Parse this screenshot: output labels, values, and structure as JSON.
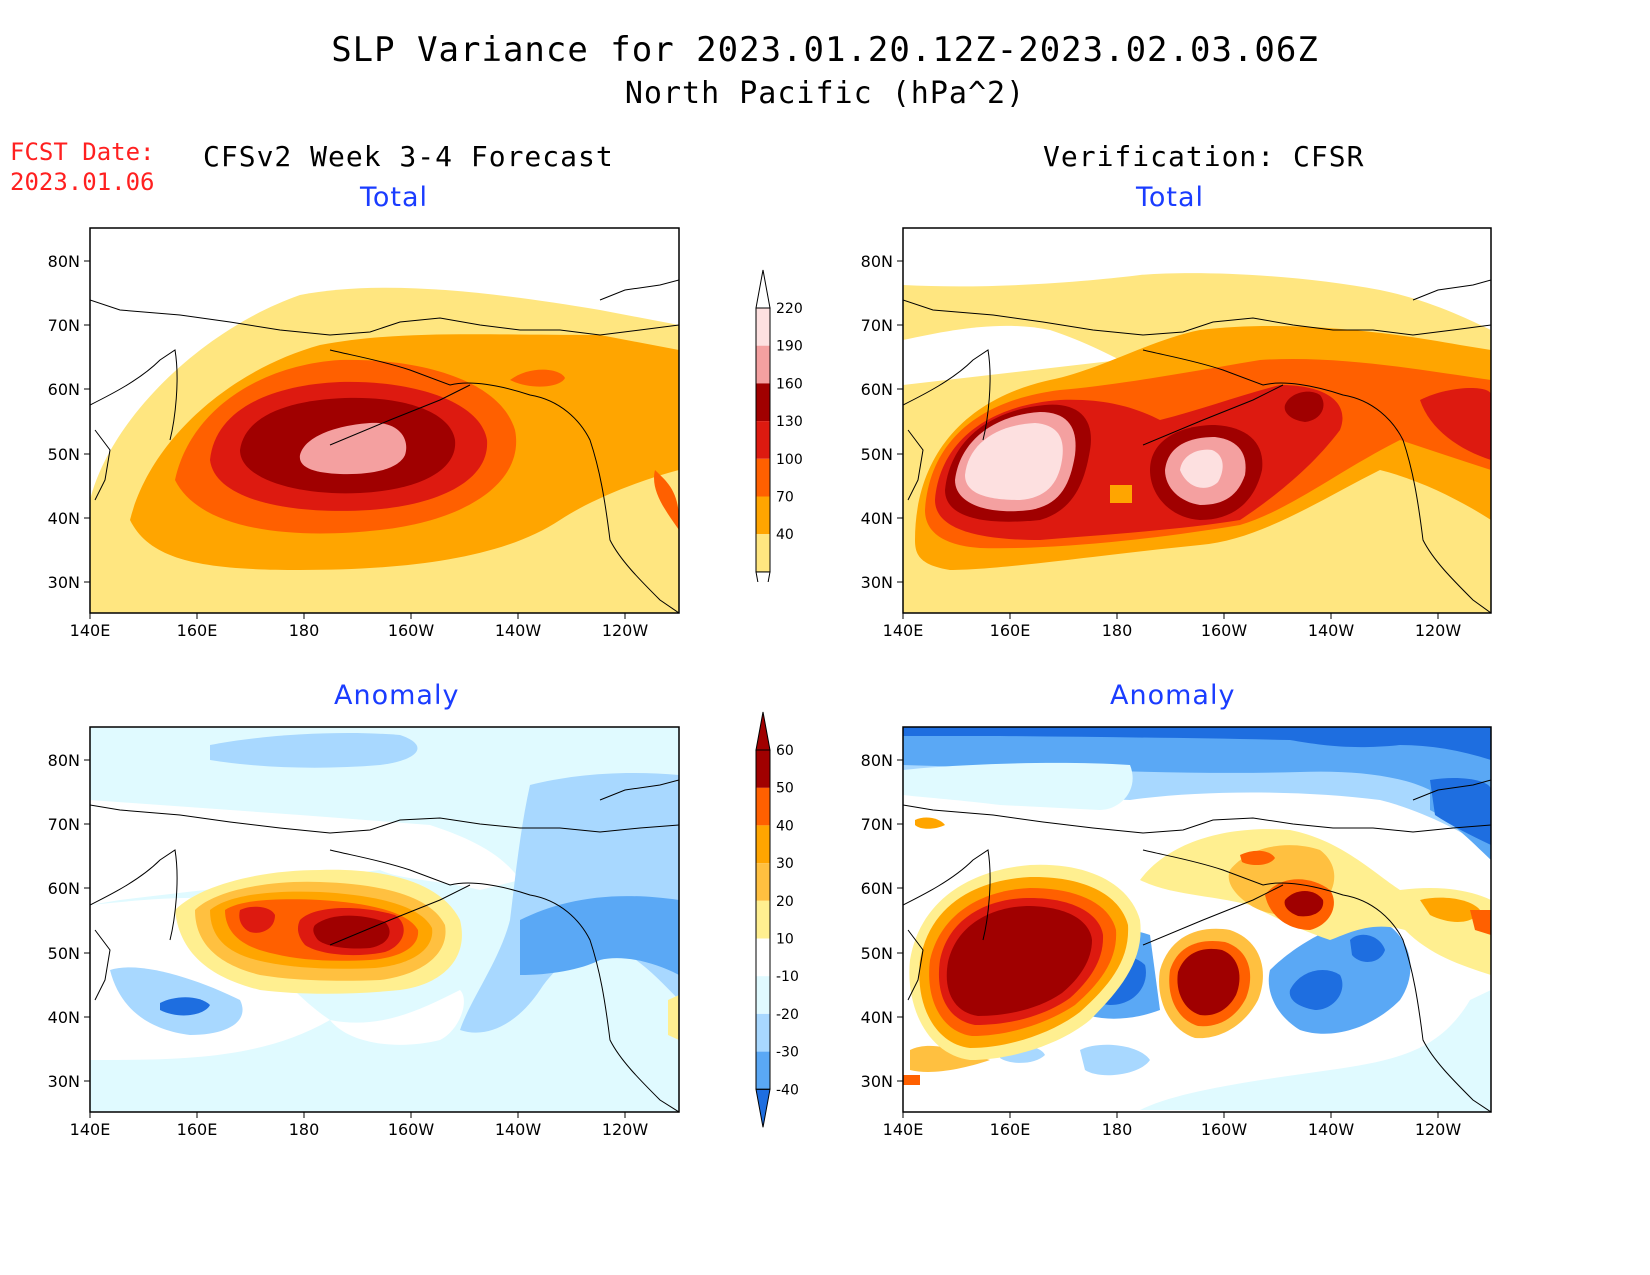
{
  "title": "SLP Variance for 2023.01.20.12Z-2023.02.03.06Z",
  "subtitle": "North Pacific (hPa^2)",
  "fcst_date_label": "FCST Date:",
  "fcst_date_value": "2023.01.06",
  "left_header": "CFSv2 Week 3-4 Forecast",
  "right_header": "Verification: CFSR",
  "panel_titles": {
    "total": "Total",
    "anomaly": "Anomaly"
  },
  "lat_labels": [
    "80N",
    "70N",
    "60N",
    "50N",
    "40N",
    "30N"
  ],
  "lon_labels": [
    "140E",
    "160E",
    "180",
    "160W",
    "140W",
    "120W"
  ],
  "total_colorbar": {
    "levels": [
      "220",
      "190",
      "160",
      "130",
      "100",
      "70",
      "40"
    ],
    "colors": [
      "#fde0e0",
      "#f4a0a0",
      "#a00000",
      "#dd1a10",
      "#ff6000",
      "#ffa500",
      "#ffe680"
    ]
  },
  "anomaly_colorbar": {
    "levels": [
      "60",
      "50",
      "40",
      "30",
      "20",
      "10",
      "-10",
      "-20",
      "-30",
      "-40"
    ],
    "colors": [
      "#a00000",
      "#dd1a10",
      "#ff6000",
      "#ffa500",
      "#ffc040",
      "#ffef90",
      "#ffffff",
      "#e0faff",
      "#a8d8ff",
      "#5aa8f5",
      "#1e6ee0"
    ]
  },
  "chart_data": [
    {
      "type": "heatmap",
      "panel": "CFSv2 Week 3-4 Forecast - Total",
      "xlabel": "",
      "ylabel": "",
      "xlim": [
        "140E",
        "110W"
      ],
      "ylim": [
        "25N",
        "85N"
      ],
      "max_region": "near 175W 51N, 190-220 hPa^2"
    },
    {
      "type": "heatmap",
      "panel": "Verification: CFSR - Total",
      "xlabel": "",
      "ylabel": "",
      "xlim": [
        "140E",
        "110W"
      ],
      "ylim": [
        "25N",
        "85N"
      ],
      "max_region": "near 165E 47N and 162W 47N, >220 hPa^2"
    },
    {
      "type": "heatmap",
      "panel": "CFSv2 Week 3-4 Forecast - Anomaly",
      "xlabel": "",
      "ylabel": "",
      "xlim": [
        "140E",
        "110W"
      ],
      "ylim": [
        "25N",
        "85N"
      ],
      "max_region": "near 172W 52N, 50-60 hPa^2"
    },
    {
      "type": "heatmap",
      "panel": "Verification: CFSR - Anomaly",
      "xlabel": "",
      "ylabel": "",
      "xlim": [
        "140E",
        "110W"
      ],
      "ylim": [
        "25N",
        "85N"
      ],
      "max_region": "near 170E 52N, >60 hPa^2"
    }
  ]
}
